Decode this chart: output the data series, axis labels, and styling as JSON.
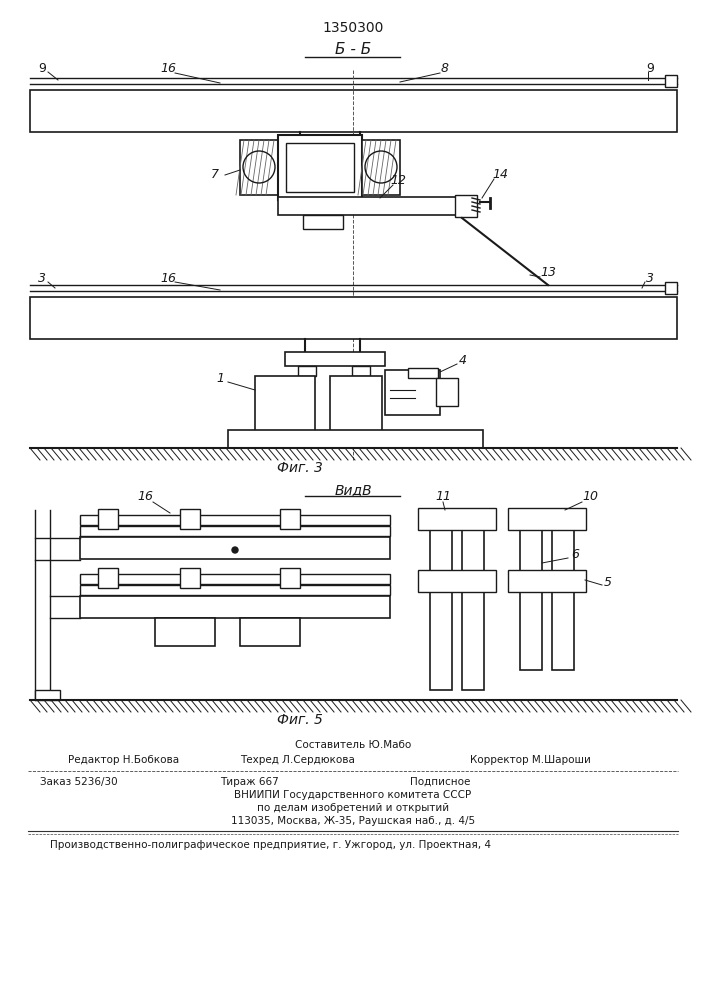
{
  "title_number": "1350300",
  "title_section": "Б - Б",
  "fig3_label": "Фиг. 3",
  "fig5_label": "Фиг. 5",
  "view_label": "ВидВ",
  "footer_line1_center": "Составитель Ю.Мабо",
  "footer_line2_left": "Редактор Н.Бобкова",
  "footer_line2_center": "Техред Л.Сердюкова",
  "footer_line2_right": "Корректор М.Шароши",
  "footer_line3_left": "Заказ 5236/30",
  "footer_line3_center": "Тираж 667",
  "footer_line3_right": "Подписное",
  "footer_line4": "ВНИИПИ Государственного комитета СССР",
  "footer_line5": "по делам изобретений и открытий",
  "footer_line6": "113035, Москва, Ж-35, Раушская наб., д. 4/5",
  "footer_last": "Производственно-полиграфическое предприятие, г. Ужгород, ул. Проектная, 4",
  "bg_color": "#ffffff",
  "line_color": "#1a1a1a"
}
